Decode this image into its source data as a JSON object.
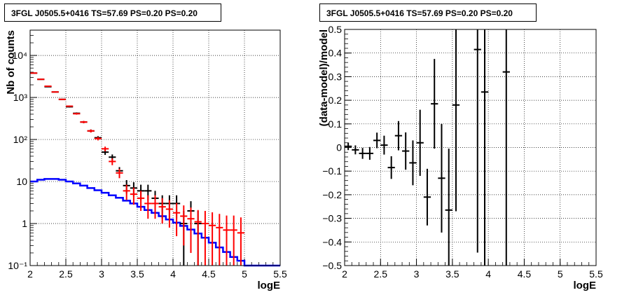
{
  "chart_data": [
    {
      "type": "scatter",
      "title": "3FGL J0505.5+0416 TS=57.69 PS=0.20 PS=0.20",
      "xlabel": "logE",
      "ylabel": "Nb of counts",
      "xlim": [
        2,
        5.5
      ],
      "ylim": [
        0.1,
        40000
      ],
      "yscale": "log",
      "grid": true,
      "x_ticks": [
        "2",
        "2.5",
        "3",
        "3.5",
        "4",
        "4.5",
        "5",
        "5.5"
      ],
      "y_ticks": [
        "10⁻¹",
        "1",
        "10",
        "10²",
        "10³",
        "10⁴"
      ],
      "series": [
        {
          "style": "histogram",
          "color": "#0000ff",
          "bin_width": 0.1,
          "x": [
            2.05,
            2.15,
            2.25,
            2.35,
            2.45,
            2.55,
            2.65,
            2.75,
            2.85,
            2.95,
            3.05,
            3.15,
            3.25,
            3.35,
            3.45,
            3.55,
            3.65,
            3.75,
            3.85,
            3.95,
            4.05,
            4.15,
            4.25,
            4.35,
            4.45,
            4.55,
            4.65,
            4.75,
            4.85,
            4.95,
            5.05,
            5.15,
            5.25,
            5.35,
            5.45
          ],
          "y": [
            10,
            11,
            11.5,
            11.5,
            11,
            10,
            9,
            8,
            7,
            6.2,
            5.4,
            4.7,
            4.1,
            3.5,
            3.0,
            2.5,
            2.1,
            1.8,
            1.5,
            1.25,
            1.05,
            0.88,
            0.72,
            0.58,
            0.46,
            0.35,
            0.27,
            0.21,
            0.16,
            0.13,
            0.1,
            0.1,
            0.1,
            0.1,
            0.1
          ]
        },
        {
          "style": "errorbar",
          "color": "#000000",
          "x": [
            2.05,
            2.15,
            2.25,
            2.35,
            2.45,
            2.55,
            2.65,
            2.75,
            2.85,
            2.95,
            3.05,
            3.15,
            3.25,
            3.35,
            3.45,
            3.55,
            3.65,
            3.75,
            3.85,
            3.95,
            4.05,
            4.15,
            4.25,
            4.35
          ],
          "y": [
            3800,
            2700,
            1800,
            1350,
            900,
            600,
            420,
            260,
            160,
            110,
            50,
            38,
            18,
            8,
            7,
            6,
            6,
            4,
            3,
            3,
            3,
            1,
            2,
            1
          ],
          "err_low": [
            62,
            52,
            42,
            37,
            30,
            24,
            20,
            16,
            13,
            10,
            7,
            6,
            4,
            2.8,
            2.6,
            2.4,
            2.4,
            2,
            1.7,
            1.7,
            1.7,
            1,
            1.4,
            1
          ],
          "err_high": [
            62,
            52,
            42,
            37,
            30,
            24,
            20,
            16,
            13,
            10,
            7,
            6,
            4,
            2.8,
            2.6,
            2.4,
            2.4,
            2,
            1.7,
            1.7,
            1.7,
            1,
            1.4,
            1
          ]
        },
        {
          "style": "errorbar",
          "color": "#ff0000",
          "x": [
            2.05,
            2.15,
            2.25,
            2.35,
            2.45,
            2.55,
            2.65,
            2.75,
            2.85,
            2.95,
            3.05,
            3.15,
            3.25,
            3.35,
            3.45,
            3.55,
            3.65,
            3.75,
            3.85,
            3.95,
            4.05,
            4.15,
            4.25,
            4.35,
            4.45,
            4.55,
            4.65,
            4.75,
            4.85,
            4.95
          ],
          "y": [
            3800,
            2700,
            1850,
            1350,
            900,
            620,
            410,
            260,
            160,
            105,
            60,
            30,
            16,
            6,
            5,
            4,
            3,
            3,
            2.5,
            2.2,
            1.8,
            1.5,
            1.3,
            1.1,
            1,
            0.9,
            0.8,
            0.7,
            0.7,
            0.6
          ],
          "err_low": [
            62,
            52,
            43,
            37,
            30,
            25,
            20,
            16,
            13,
            10,
            7.7,
            5.5,
            4,
            2.4,
            2.2,
            2,
            1.7,
            1.7,
            1.5,
            1.4,
            1.3,
            1.2,
            1.1,
            1.0,
            0.95,
            0.85,
            0.75,
            0.65,
            0.65,
            0.55
          ],
          "err_high": [
            62,
            52,
            43,
            37,
            30,
            25,
            20,
            16,
            13,
            10,
            7.7,
            5.5,
            4,
            2.4,
            2.2,
            2,
            1.7,
            1.7,
            1.5,
            1.4,
            1.3,
            1.2,
            1.1,
            1.0,
            1.0,
            0.95,
            0.9,
            0.85,
            0.85,
            0.8
          ]
        }
      ]
    },
    {
      "type": "scatter",
      "title": "3FGL J0505.5+0416 TS=57.69 PS=0.20 PS=0.20",
      "xlabel": "logE",
      "ylabel": "(data-model)/model",
      "xlim": [
        2,
        5.5
      ],
      "ylim": [
        -0.5,
        0.5
      ],
      "grid": true,
      "x_ticks": [
        "2",
        "2.5",
        "3",
        "3.5",
        "4",
        "4.5",
        "5",
        "5.5"
      ],
      "y_ticks": [
        "−0.5",
        "−0.4",
        "−0.3",
        "−0.2",
        "−0.1",
        "0",
        "0.1",
        "0.2",
        "0.3",
        "0.4",
        "0.5"
      ],
      "series": [
        {
          "style": "errorbar",
          "color": "#000000",
          "x": [
            2.05,
            2.15,
            2.25,
            2.35,
            2.45,
            2.55,
            2.65,
            2.75,
            2.85,
            2.95,
            3.05,
            3.15,
            3.25,
            3.35,
            3.45,
            3.55,
            3.85,
            3.95,
            4.25
          ],
          "y": [
            0.005,
            -0.01,
            -0.025,
            -0.025,
            0.03,
            0.01,
            -0.085,
            0.05,
            -0.015,
            -0.065,
            0.02,
            -0.21,
            0.185,
            -0.13,
            -0.265,
            0.18,
            0.415,
            0.235,
            0.32
          ],
          "err": [
            0.016,
            0.019,
            0.023,
            0.027,
            0.033,
            0.04,
            0.048,
            0.062,
            0.079,
            0.095,
            0.14,
            0.12,
            0.19,
            0.23,
            0.26,
            0.45,
            0.86,
            0.98,
            0.96
          ]
        }
      ]
    }
  ]
}
